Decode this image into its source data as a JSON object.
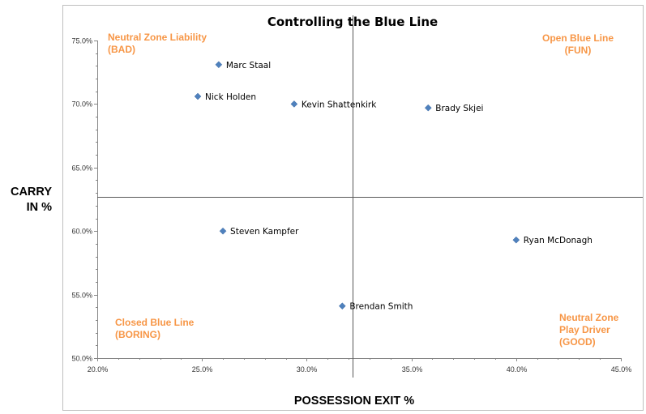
{
  "chart_data": {
    "type": "scatter",
    "title": "Controlling the Blue Line",
    "xlabel": "POSSESSION EXIT %",
    "ylabel": [
      "CARRY",
      "IN %"
    ],
    "xlim": [
      0.2,
      0.45
    ],
    "ylim": [
      0.5,
      0.75
    ],
    "x_ticks": [
      "20.0%",
      "25.0%",
      "30.0%",
      "35.0%",
      "40.0%",
      "45.0%"
    ],
    "y_ticks": [
      "50.0%",
      "55.0%",
      "60.0%",
      "65.0%",
      "70.0%",
      "75.0%"
    ],
    "x_tick_values": [
      0.2,
      0.25,
      0.3,
      0.35,
      0.4,
      0.45
    ],
    "y_tick_values": [
      0.5,
      0.55,
      0.6,
      0.65,
      0.7,
      0.75
    ],
    "divider": {
      "x": 0.322,
      "y": 0.627
    },
    "marker_color": "#4f81bd",
    "quadrant_color": "#f79646",
    "grid": false,
    "points": [
      {
        "label": "Marc Staal",
        "x": 0.258,
        "y": 0.731
      },
      {
        "label": "Nick Holden",
        "x": 0.248,
        "y": 0.706
      },
      {
        "label": "Kevin Shattenkirk",
        "x": 0.294,
        "y": 0.7
      },
      {
        "label": "Brady Skjei",
        "x": 0.358,
        "y": 0.697
      },
      {
        "label": "Steven Kampfer",
        "x": 0.26,
        "y": 0.6
      },
      {
        "label": "Ryan McDonagh",
        "x": 0.4,
        "y": 0.593
      },
      {
        "label": "Brendan Smith",
        "x": 0.317,
        "y": 0.541
      }
    ],
    "quadrant_labels": [
      {
        "id": "top-left",
        "lines": [
          "Neutral Zone Liability",
          "(BAD)"
        ]
      },
      {
        "id": "top-right",
        "lines": [
          "Open Blue Line",
          "(FUN)"
        ]
      },
      {
        "id": "bottom-left",
        "lines": [
          "Closed Blue Line",
          "(BORING)"
        ]
      },
      {
        "id": "bottom-right",
        "lines": [
          "Neutral Zone",
          "Play Driver",
          "(GOOD)"
        ]
      }
    ]
  }
}
